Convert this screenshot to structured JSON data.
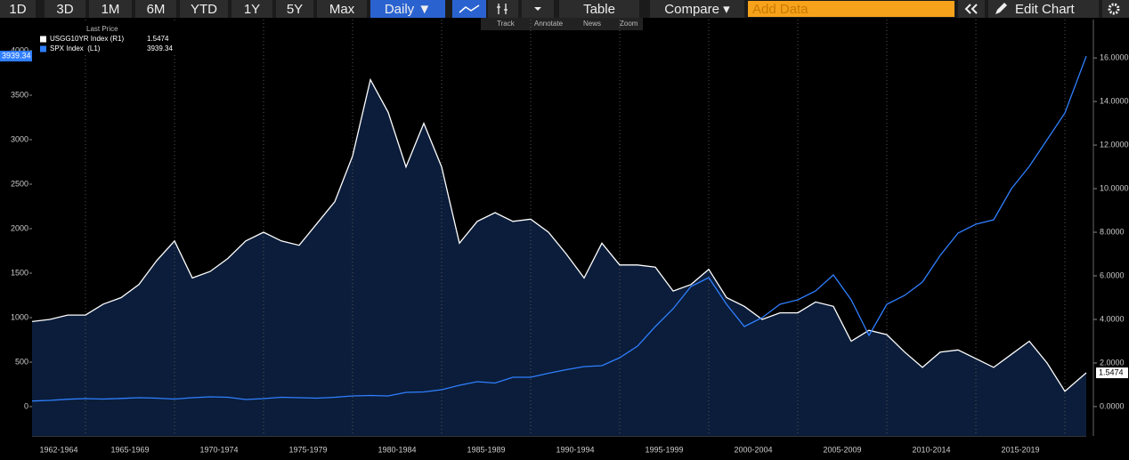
{
  "toolbar": {
    "ranges": [
      "1D",
      "3D",
      "1M",
      "6M",
      "YTD",
      "1Y",
      "5Y",
      "Max"
    ],
    "frequency": "Daily ▼",
    "table": "Table",
    "compare": "Compare ▾",
    "add_data": "Add Data",
    "edit_chart": "Edit Chart"
  },
  "subtoolbar": [
    "Track",
    "Annotate",
    "News",
    "Zoom"
  ],
  "chart_data": {
    "type": "line",
    "legend_title": "Last Price",
    "x": [
      1962,
      1963,
      1964,
      1965,
      1966,
      1967,
      1968,
      1969,
      1970,
      1971,
      1972,
      1973,
      1974,
      1975,
      1976,
      1977,
      1978,
      1979,
      1980,
      1981,
      1982,
      1983,
      1984,
      1985,
      1986,
      1987,
      1988,
      1989,
      1990,
      1991,
      1992,
      1993,
      1994,
      1995,
      1996,
      1997,
      1998,
      1999,
      2000,
      2001,
      2002,
      2003,
      2004,
      2005,
      2006,
      2007,
      2008,
      2009,
      2010,
      2011,
      2012,
      2013,
      2014,
      2015,
      2016,
      2017,
      2018,
      2019,
      2020,
      2021.2
    ],
    "series": [
      {
        "name": "USGG10YR Index (R1)",
        "color": "#ffffff",
        "axis": "y2",
        "fill": "#0b1d3a",
        "values": [
          3.9,
          4.0,
          4.2,
          4.2,
          4.7,
          5.0,
          5.6,
          6.7,
          7.6,
          5.9,
          6.2,
          6.8,
          7.6,
          8.0,
          7.6,
          7.4,
          8.4,
          9.4,
          11.5,
          15.0,
          13.5,
          11.0,
          13.0,
          11.0,
          7.5,
          8.5,
          8.9,
          8.5,
          8.6,
          8.0,
          7.0,
          5.9,
          7.5,
          6.5,
          6.5,
          6.4,
          5.3,
          5.6,
          6.3,
          5.0,
          4.6,
          4.0,
          4.3,
          4.3,
          4.8,
          4.6,
          3.0,
          3.5,
          3.3,
          2.5,
          1.8,
          2.5,
          2.6,
          2.2,
          1.8,
          2.4,
          3.0,
          2.0,
          0.7,
          1.5474
        ]
      },
      {
        "name": "SPX Index  (L1)",
        "color": "#2f7fff",
        "values": [
          63,
          70,
          83,
          90,
          85,
          92,
          100,
          95,
          85,
          100,
          110,
          105,
          80,
          90,
          105,
          100,
          95,
          105,
          120,
          125,
          120,
          160,
          165,
          190,
          240,
          280,
          265,
          330,
          330,
          375,
          415,
          450,
          460,
          550,
          680,
          900,
          1100,
          1350,
          1450,
          1150,
          900,
          1000,
          1150,
          1200,
          1300,
          1480,
          1200,
          800,
          1150,
          1250,
          1400,
          1700,
          1950,
          2050,
          2100,
          2450,
          2700,
          3000,
          3300,
          3939.34
        ]
      }
    ],
    "xlim": [
      1962,
      2021.2
    ],
    "xticks": [
      1965,
      1970,
      1975,
      1980,
      1985,
      1990,
      1995,
      2000,
      2005,
      2010,
      2015,
      2020
    ],
    "x_periods": [
      "1962-1964",
      "1965-1969",
      "1970-1974",
      "1975-1979",
      "1980-1984",
      "1985-1989",
      "1990-1994",
      "1995-1999",
      "2000-2004",
      "2005-2009",
      "2010-2014",
      "2015-2019"
    ],
    "ylim": [
      -330,
      4350
    ],
    "yticks": [
      0,
      500,
      1000,
      1500,
      2000,
      2500,
      3000,
      3500,
      4000
    ],
    "y2lim": [
      -1.35,
      17.76
    ],
    "y2ticks": [
      {
        "value": 0,
        "label": "0.0000"
      },
      {
        "value": 2,
        "label": "2.0000"
      },
      {
        "value": 4,
        "label": "4.0000"
      },
      {
        "value": 6,
        "label": "6.0000"
      },
      {
        "value": 8,
        "label": "8.0000"
      },
      {
        "value": 10,
        "label": "10.0000"
      },
      {
        "value": 12,
        "label": "12.0000"
      },
      {
        "value": 14,
        "label": "14.0000"
      },
      {
        "value": 16,
        "label": "16.0000"
      }
    ],
    "grid": true
  }
}
